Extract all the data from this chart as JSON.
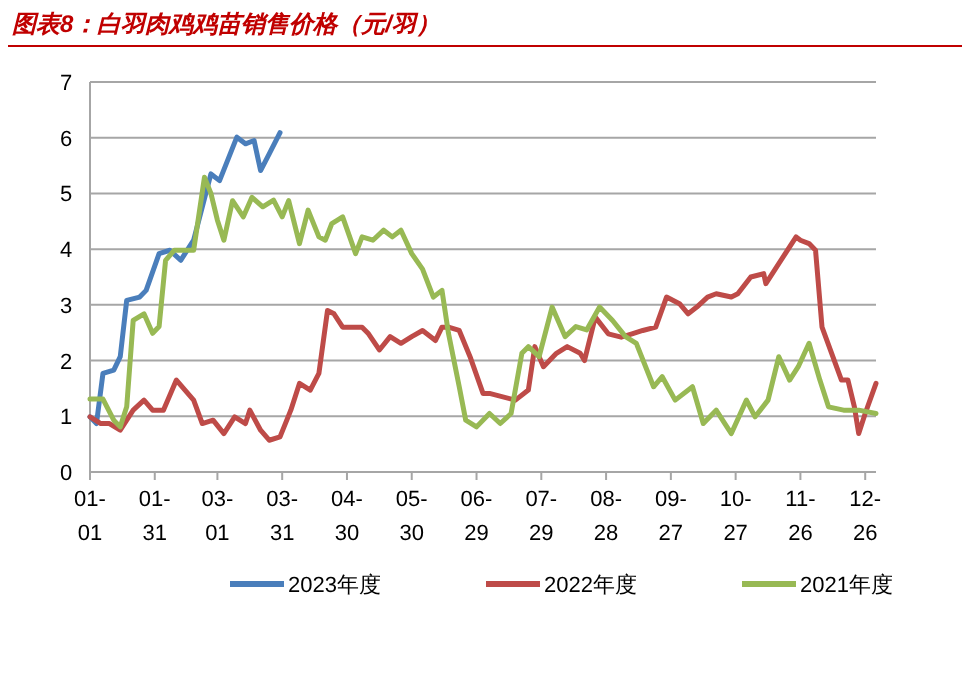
{
  "chart_data": {
    "type": "line",
    "title": "图表8：白羽肉鸡鸡苗销售价格（元/羽）",
    "xlim": [
      "--01-01",
      "--12-31"
    ],
    "ylim": [
      0,
      7
    ],
    "yticks": [
      0,
      1,
      2,
      3,
      4,
      5,
      6,
      7
    ],
    "xticks": [
      {
        "value": "--01-01",
        "label": "01-01"
      },
      {
        "value": "--01-31",
        "label": "01-31"
      },
      {
        "value": "--03-01",
        "label": "03-01"
      },
      {
        "value": "--03-31",
        "label": "03-31"
      },
      {
        "value": "--04-30",
        "label": "04-30"
      },
      {
        "value": "--05-30",
        "label": "05-30"
      },
      {
        "value": "--06-29",
        "label": "06-29"
      },
      {
        "value": "--07-29",
        "label": "07-29"
      },
      {
        "value": "--08-28",
        "label": "08-28"
      },
      {
        "value": "--09-27",
        "label": "09-27"
      },
      {
        "value": "--10-27",
        "label": "10-27"
      },
      {
        "value": "--11-26",
        "label": "11-26"
      },
      {
        "value": "--12-26",
        "label": "12-26"
      }
    ],
    "grid": "y",
    "legend": "bottom",
    "marker": "none",
    "line_style": "solid",
    "series": [
      {
        "name": "2023年度",
        "color": "#4a7ebb",
        "x": [
          "--01-01",
          "--01-04",
          "--01-07",
          "--01-12",
          "--01-15",
          "--01-18",
          "--01-24",
          "--01-27",
          "--02-02",
          "--02-07",
          "--02-12",
          "--02-18",
          "--02-26",
          "--03-02",
          "--03-10",
          "--03-14",
          "--03-18",
          "--03-21",
          "--03-25",
          "--03-30"
        ],
        "values": [
          0.99,
          0.87,
          1.77,
          1.83,
          2.07,
          3.08,
          3.14,
          3.26,
          3.92,
          3.98,
          3.8,
          4.16,
          5.35,
          5.23,
          6.01,
          5.89,
          5.95,
          5.41,
          5.71,
          6.09
        ]
      },
      {
        "name": "2022年度",
        "color": "#be4b48",
        "x": [
          "--01-01",
          "--01-06",
          "--01-10",
          "--01-15",
          "--01-21",
          "--01-26",
          "--01-30",
          "--02-04",
          "--02-10",
          "--02-18",
          "--02-22",
          "--02-27",
          "--03-04",
          "--03-09",
          "--03-14",
          "--03-16",
          "--03-21",
          "--03-25",
          "--03-30",
          "--04-04",
          "--04-08",
          "--04-13",
          "--04-17",
          "--04-21",
          "--04-24",
          "--04-28",
          "--05-03",
          "--05-07",
          "--05-10",
          "--05-15",
          "--05-20",
          "--05-25",
          "--05-30",
          "--06-04",
          "--06-10",
          "--06-13",
          "--06-16",
          "--06-21",
          "--06-26",
          "--07-02",
          "--07-05",
          "--07-17",
          "--07-23",
          "--07-26",
          "--07-30",
          "--08-05",
          "--08-10",
          "--08-16",
          "--08-18",
          "--08-23",
          "--08-29",
          "--09-04",
          "--09-09",
          "--09-14",
          "--09-20",
          "--09-25",
          "--10-01",
          "--10-05",
          "--10-09",
          "--10-14",
          "--10-18",
          "--10-25",
          "--10-28",
          "--11-03",
          "--11-09",
          "--11-10",
          "--11-18",
          "--11-24",
          "--11-26",
          "--11-30",
          "--12-03",
          "--12-06",
          "--12-15",
          "--12-18",
          "--12-21",
          "--12-23",
          "--12-26",
          "--12-31"
        ],
        "values": [
          0.99,
          0.87,
          0.87,
          0.75,
          1.11,
          1.29,
          1.11,
          1.11,
          1.65,
          1.29,
          0.87,
          0.93,
          0.69,
          0.99,
          0.87,
          1.11,
          0.75,
          0.57,
          0.63,
          1.11,
          1.59,
          1.47,
          1.77,
          2.9,
          2.84,
          2.6,
          2.6,
          2.6,
          2.48,
          2.19,
          2.43,
          2.31,
          2.43,
          2.54,
          2.36,
          2.6,
          2.6,
          2.54,
          2.07,
          1.41,
          1.41,
          1.29,
          1.47,
          2.25,
          1.89,
          2.13,
          2.25,
          2.13,
          2.0,
          2.78,
          2.48,
          2.42,
          2.48,
          2.54,
          2.6,
          3.14,
          3.02,
          2.84,
          2.96,
          3.14,
          3.2,
          3.14,
          3.2,
          3.5,
          3.56,
          3.38,
          3.86,
          4.22,
          4.16,
          4.1,
          3.98,
          2.6,
          1.65,
          1.65,
          1.17,
          0.69,
          1.05,
          1.59
        ]
      },
      {
        "name": "2021年度",
        "color": "#98b954",
        "x": [
          "--01-01",
          "--01-07",
          "--01-12",
          "--01-15",
          "--01-18",
          "--01-21",
          "--01-26",
          "--01-30",
          "--02-02",
          "--02-05",
          "--02-09",
          "--02-18",
          "--02-23",
          "--02-26",
          "--03-01",
          "--03-04",
          "--03-08",
          "--03-13",
          "--03-17",
          "--03-22",
          "--03-27",
          "--03-31",
          "--04-03",
          "--04-08",
          "--04-12",
          "--04-17",
          "--04-20",
          "--04-23",
          "--04-28",
          "--05-04",
          "--05-07",
          "--05-12",
          "--05-17",
          "--05-21",
          "--05-25",
          "--05-30",
          "--06-04",
          "--06-09",
          "--06-13",
          "--06-16",
          "--06-21",
          "--06-24",
          "--06-29",
          "--07-05",
          "--07-10",
          "--07-15",
          "--07-20",
          "--07-23",
          "--07-28",
          "--08-03",
          "--08-09",
          "--08-14",
          "--08-19",
          "--08-25",
          "--08-31",
          "--09-06",
          "--09-11",
          "--09-19",
          "--09-23",
          "--09-29",
          "--10-07",
          "--10-12",
          "--10-18",
          "--10-22",
          "--10-25",
          "--11-01",
          "--11-05",
          "--11-11",
          "--11-16",
          "--11-21",
          "--11-25",
          "--11-30",
          "--12-05",
          "--12-09",
          "--12-16",
          "--12-23",
          "--12-31"
        ],
        "values": [
          1.31,
          1.31,
          0.93,
          0.81,
          1.17,
          2.72,
          2.84,
          2.49,
          2.61,
          3.8,
          3.98,
          3.98,
          5.29,
          5.0,
          4.52,
          4.16,
          4.87,
          4.58,
          4.93,
          4.76,
          4.88,
          4.58,
          4.87,
          4.1,
          4.7,
          4.22,
          4.16,
          4.46,
          4.58,
          3.92,
          4.22,
          4.16,
          4.34,
          4.22,
          4.34,
          3.92,
          3.64,
          3.14,
          3.26,
          2.49,
          1.53,
          0.93,
          0.81,
          1.05,
          0.87,
          1.05,
          2.13,
          2.25,
          2.07,
          2.96,
          2.43,
          2.61,
          2.55,
          2.96,
          2.72,
          2.43,
          2.31,
          1.53,
          1.71,
          1.29,
          1.53,
          0.87,
          1.11,
          0.87,
          0.69,
          1.29,
          0.99,
          1.29,
          2.07,
          1.65,
          1.89,
          2.31,
          1.65,
          1.17,
          1.11,
          1.11,
          1.05
        ]
      }
    ]
  }
}
